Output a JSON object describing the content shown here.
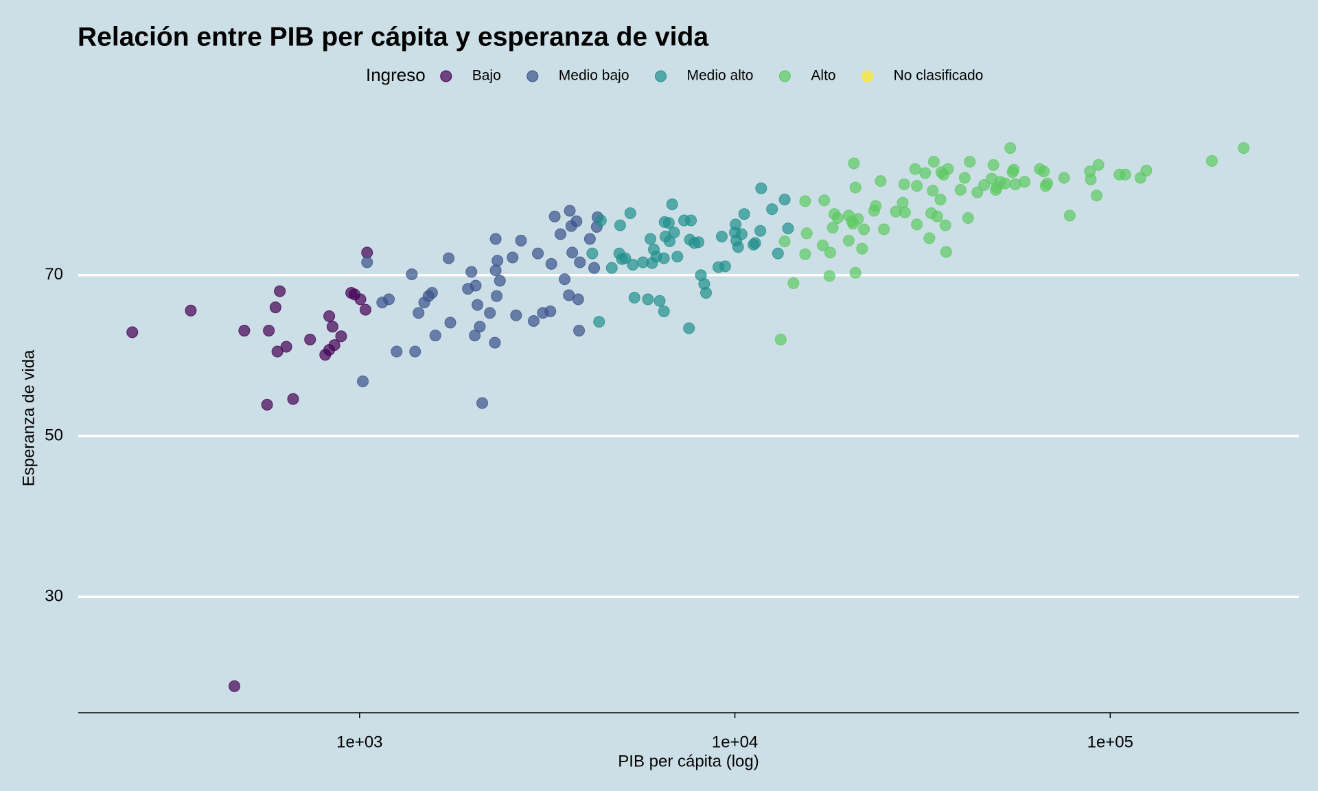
{
  "chart_data": {
    "type": "scatter",
    "title": "Relación entre PIB per cápita y esperanza de vida",
    "x_label": "PIB per cápita (log)",
    "y_label": "Esperanza de vida",
    "legend_title": "Ingreso",
    "legend_position": "top",
    "x_log": true,
    "grid": true,
    "xlim": [
      178,
      318000
    ],
    "ylim": [
      15.6,
      88.5
    ],
    "xticks": [
      {
        "value": 1000,
        "label": "1e+03"
      },
      {
        "value": 10000,
        "label": "1e+04"
      },
      {
        "value": 100000,
        "label": "1e+05"
      }
    ],
    "yticks": [
      30,
      50,
      70
    ],
    "series": [
      {
        "name": "Bajo",
        "color": "#440154",
        "x": [
          248,
          355,
          464,
          493,
          567,
          573,
          597,
          604,
          613,
          638,
          665,
          738,
          810,
          830,
          830,
          847,
          857,
          893,
          950,
          970,
          1005,
          1037,
          1047
        ],
        "values": [
          62.9,
          65.6,
          18.9,
          63.1,
          53.9,
          63.1,
          66.0,
          60.5,
          68.0,
          61.1,
          54.6,
          62.0,
          60.1,
          64.9,
          60.7,
          63.6,
          61.3,
          62.4,
          67.8,
          67.6,
          67.0,
          65.7,
          72.8
        ]
      },
      {
        "name": "Medio bajo",
        "color": "#3b528b",
        "x": [
          1020,
          1047,
          1149,
          1197,
          1255,
          1378,
          1406,
          1436,
          1487,
          1527,
          1560,
          1592,
          1727,
          1745,
          1944,
          1986,
          2027,
          2039,
          2061,
          2091,
          2122,
          2224,
          2294,
          2305,
          2305,
          2318,
          2330,
          2365,
          2557,
          2612,
          2692,
          2910,
          2986,
          3079,
          3223,
          3243,
          3311,
          3430,
          3518,
          3611,
          3631,
          3665,
          3687,
          3784,
          3823,
          3844,
          3864,
          4109,
          4217,
          4285,
          4305
        ],
        "values": [
          56.8,
          71.6,
          66.6,
          67.0,
          60.5,
          70.1,
          60.5,
          65.3,
          66.6,
          67.4,
          67.8,
          62.5,
          72.1,
          64.1,
          68.3,
          70.4,
          62.5,
          68.7,
          66.3,
          63.6,
          54.1,
          65.3,
          61.6,
          74.5,
          70.6,
          67.4,
          71.8,
          69.3,
          72.2,
          65.0,
          74.3,
          64.3,
          72.7,
          65.3,
          65.5,
          71.4,
          77.3,
          75.1,
          69.5,
          67.5,
          78.0,
          76.1,
          72.8,
          76.7,
          67.0,
          63.1,
          71.6,
          74.5,
          70.9,
          76.0,
          77.2
        ]
      },
      {
        "name": "Medio alto",
        "color": "#21908c",
        "x": [
          4347,
          4394,
          4169,
          4699,
          4920,
          4946,
          5000,
          5103,
          5265,
          5347,
          5400,
          5689,
          5865,
          5957,
          6016,
          6081,
          6176,
          6305,
          6471,
          6471,
          6501,
          6531,
          6668,
          6699,
          6806,
          6885,
          7028,
          7322,
          7546,
          7586,
          7638,
          7798,
          7998,
          8117,
          8285,
          8377,
          9040,
          9228,
          9421,
          10000,
          10046,
          10093,
          10200,
          10419,
          10589,
          11211,
          11325,
          11692,
          11748,
          12562,
          13025,
          13573,
          13857
        ],
        "values": [
          64.2,
          76.8,
          72.7,
          70.9,
          72.7,
          76.2,
          72.0,
          72.1,
          77.7,
          71.3,
          67.2,
          71.6,
          67.0,
          74.5,
          71.5,
          73.2,
          72.3,
          66.8,
          72.1,
          65.5,
          76.6,
          74.8,
          76.5,
          74.2,
          78.8,
          75.3,
          72.3,
          76.8,
          63.4,
          74.4,
          76.8,
          74.0,
          74.1,
          70.0,
          68.9,
          67.8,
          71.0,
          74.8,
          71.1,
          75.3,
          76.3,
          74.3,
          73.5,
          75.1,
          77.6,
          73.8,
          74.0,
          75.5,
          80.8,
          78.2,
          72.7,
          79.4,
          75.8
        ]
      },
      {
        "name": "Alto",
        "color": "#5ec962",
        "x": [
          13247,
          13573,
          14319,
          15388,
          15388,
          15535,
          17140,
          17300,
          17865,
          17950,
          18233,
          18408,
          18793,
          20106,
          20106,
          20510,
          20650,
          20750,
          20950,
          20950,
          21270,
          21820,
          22070,
          23490,
          23720,
          24450,
          24950,
          26850,
          27990,
          28250,
          28390,
          30220,
          30530,
          30530,
          32140,
          32970,
          33350,
          33660,
          33880,
          34580,
          35300,
          35480,
          35980,
          36380,
          36550,
          36960,
          39920,
          40960,
          41810,
          42250,
          44260,
          46130,
          48330,
          48840,
          49580,
          49860,
          50920,
          52490,
          54170,
          54950,
          55310,
          55850,
          59120,
          64890,
          66540,
          67300,
          67960,
          75350,
          78040,
          88310,
          88770,
          92010,
          93030,
          105830,
          109700,
          120400,
          124800,
          186600,
          226800
        ],
        "values": [
          62.0,
          74.2,
          69.0,
          72.6,
          79.2,
          75.2,
          73.7,
          79.3,
          69.9,
          72.8,
          75.9,
          77.6,
          77.1,
          74.3,
          77.4,
          76.7,
          76.4,
          83.9,
          70.3,
          80.9,
          77.0,
          73.3,
          75.7,
          78.0,
          78.6,
          81.7,
          75.7,
          77.9,
          79.0,
          81.3,
          77.8,
          83.2,
          81.1,
          76.3,
          82.7,
          74.6,
          77.7,
          80.5,
          84.1,
          77.3,
          79.4,
          82.8,
          82.5,
          76.2,
          72.9,
          83.2,
          80.6,
          82.1,
          77.1,
          84.1,
          80.3,
          81.2,
          82.0,
          83.7,
          80.6,
          80.9,
          81.6,
          81.4,
          85.8,
          82.8,
          83.1,
          81.3,
          81.6,
          83.2,
          82.9,
          81.1,
          81.4,
          82.1,
          77.4,
          82.9,
          81.9,
          79.9,
          83.7,
          82.5,
          82.5,
          82.1,
          83.0,
          84.2,
          85.8
        ]
      },
      {
        "name": "No clasificado",
        "color": "#fde725",
        "x": [],
        "values": []
      }
    ]
  }
}
